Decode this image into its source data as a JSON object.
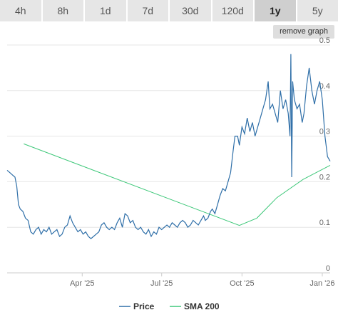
{
  "timeframe_tabs": [
    {
      "label": "4h",
      "active": false
    },
    {
      "label": "8h",
      "active": false
    },
    {
      "label": "1d",
      "active": false
    },
    {
      "label": "7d",
      "active": false
    },
    {
      "label": "30d",
      "active": false
    },
    {
      "label": "120d",
      "active": false
    },
    {
      "label": "1y",
      "active": true
    },
    {
      "label": "5y",
      "active": false
    }
  ],
  "remove_graph_label": "remove graph",
  "chart_data": {
    "type": "line",
    "x_ticks": [
      "Apr '25",
      "Jul '25",
      "Oct '25",
      "Jan '26"
    ],
    "x_tick_dates": [
      "2025-04-01",
      "2025-07-01",
      "2025-10-01",
      "2026-01-01"
    ],
    "xlim": [
      "2025-01-05",
      "2026-01-10"
    ],
    "y_ticks": [
      0,
      0.1,
      0.2,
      0.3,
      0.4,
      0.5
    ],
    "ylim": [
      0,
      0.5
    ],
    "grid": true,
    "y_axis_position": "right",
    "legend_position": "bottom",
    "series": [
      {
        "name": "Price",
        "color": "#2f6fa8",
        "points": [
          [
            "2025-01-05",
            0.225
          ],
          [
            "2025-01-08",
            0.22
          ],
          [
            "2025-01-11",
            0.215
          ],
          [
            "2025-01-14",
            0.21
          ],
          [
            "2025-01-16",
            0.19
          ],
          [
            "2025-01-18",
            0.15
          ],
          [
            "2025-01-20",
            0.14
          ],
          [
            "2025-01-23",
            0.135
          ],
          [
            "2025-01-26",
            0.12
          ],
          [
            "2025-01-29",
            0.115
          ],
          [
            "2025-02-01",
            0.09
          ],
          [
            "2025-02-04",
            0.085
          ],
          [
            "2025-02-07",
            0.095
          ],
          [
            "2025-02-10",
            0.1
          ],
          [
            "2025-02-13",
            0.085
          ],
          [
            "2025-02-16",
            0.095
          ],
          [
            "2025-02-19",
            0.09
          ],
          [
            "2025-02-22",
            0.1
          ],
          [
            "2025-02-25",
            0.085
          ],
          [
            "2025-02-28",
            0.09
          ],
          [
            "2025-03-03",
            0.095
          ],
          [
            "2025-03-06",
            0.08
          ],
          [
            "2025-03-09",
            0.085
          ],
          [
            "2025-03-12",
            0.1
          ],
          [
            "2025-03-15",
            0.105
          ],
          [
            "2025-03-18",
            0.125
          ],
          [
            "2025-03-21",
            0.11
          ],
          [
            "2025-03-24",
            0.1
          ],
          [
            "2025-03-27",
            0.09
          ],
          [
            "2025-03-30",
            0.095
          ],
          [
            "2025-04-02",
            0.085
          ],
          [
            "2025-04-05",
            0.09
          ],
          [
            "2025-04-08",
            0.08
          ],
          [
            "2025-04-11",
            0.075
          ],
          [
            "2025-04-14",
            0.08
          ],
          [
            "2025-04-17",
            0.085
          ],
          [
            "2025-04-20",
            0.09
          ],
          [
            "2025-04-23",
            0.105
          ],
          [
            "2025-04-26",
            0.11
          ],
          [
            "2025-04-29",
            0.1
          ],
          [
            "2025-05-02",
            0.095
          ],
          [
            "2025-05-05",
            0.1
          ],
          [
            "2025-05-08",
            0.095
          ],
          [
            "2025-05-11",
            0.11
          ],
          [
            "2025-05-14",
            0.12
          ],
          [
            "2025-05-17",
            0.1
          ],
          [
            "2025-05-20",
            0.13
          ],
          [
            "2025-05-23",
            0.125
          ],
          [
            "2025-05-26",
            0.11
          ],
          [
            "2025-05-29",
            0.115
          ],
          [
            "2025-06-01",
            0.1
          ],
          [
            "2025-06-04",
            0.095
          ],
          [
            "2025-06-07",
            0.1
          ],
          [
            "2025-06-10",
            0.09
          ],
          [
            "2025-06-13",
            0.085
          ],
          [
            "2025-06-16",
            0.095
          ],
          [
            "2025-06-19",
            0.08
          ],
          [
            "2025-06-22",
            0.09
          ],
          [
            "2025-06-25",
            0.085
          ],
          [
            "2025-06-28",
            0.1
          ],
          [
            "2025-07-01",
            0.095
          ],
          [
            "2025-07-04",
            0.1
          ],
          [
            "2025-07-07",
            0.105
          ],
          [
            "2025-07-10",
            0.1
          ],
          [
            "2025-07-13",
            0.11
          ],
          [
            "2025-07-16",
            0.105
          ],
          [
            "2025-07-19",
            0.1
          ],
          [
            "2025-07-22",
            0.11
          ],
          [
            "2025-07-25",
            0.115
          ],
          [
            "2025-07-28",
            0.11
          ],
          [
            "2025-07-31",
            0.1
          ],
          [
            "2025-08-03",
            0.105
          ],
          [
            "2025-08-06",
            0.115
          ],
          [
            "2025-08-09",
            0.11
          ],
          [
            "2025-08-12",
            0.105
          ],
          [
            "2025-08-15",
            0.115
          ],
          [
            "2025-08-18",
            0.125
          ],
          [
            "2025-08-20",
            0.115
          ],
          [
            "2025-08-23",
            0.12
          ],
          [
            "2025-08-26",
            0.135
          ],
          [
            "2025-08-28",
            0.14
          ],
          [
            "2025-08-31",
            0.13
          ],
          [
            "2025-09-03",
            0.15
          ],
          [
            "2025-09-06",
            0.17
          ],
          [
            "2025-09-09",
            0.185
          ],
          [
            "2025-09-12",
            0.18
          ],
          [
            "2025-09-15",
            0.2
          ],
          [
            "2025-09-18",
            0.22
          ],
          [
            "2025-09-21",
            0.27
          ],
          [
            "2025-09-23",
            0.3
          ],
          [
            "2025-09-26",
            0.3
          ],
          [
            "2025-09-28",
            0.28
          ],
          [
            "2025-10-01",
            0.32
          ],
          [
            "2025-10-04",
            0.305
          ],
          [
            "2025-10-07",
            0.34
          ],
          [
            "2025-10-10",
            0.31
          ],
          [
            "2025-10-13",
            0.33
          ],
          [
            "2025-10-16",
            0.3
          ],
          [
            "2025-10-19",
            0.32
          ],
          [
            "2025-10-22",
            0.34
          ],
          [
            "2025-10-25",
            0.36
          ],
          [
            "2025-10-28",
            0.38
          ],
          [
            "2025-10-31",
            0.42
          ],
          [
            "2025-11-02",
            0.36
          ],
          [
            "2025-11-05",
            0.37
          ],
          [
            "2025-11-08",
            0.35
          ],
          [
            "2025-11-11",
            0.33
          ],
          [
            "2025-11-14",
            0.4
          ],
          [
            "2025-11-17",
            0.36
          ],
          [
            "2025-11-20",
            0.38
          ],
          [
            "2025-11-23",
            0.35
          ],
          [
            "2025-11-25",
            0.3
          ],
          [
            "2025-11-26",
            0.48
          ],
          [
            "2025-11-27",
            0.21
          ],
          [
            "2025-11-28",
            0.42
          ],
          [
            "2025-11-30",
            0.38
          ],
          [
            "2025-12-03",
            0.36
          ],
          [
            "2025-12-06",
            0.37
          ],
          [
            "2025-12-09",
            0.33
          ],
          [
            "2025-12-11",
            0.35
          ],
          [
            "2025-12-14",
            0.41
          ],
          [
            "2025-12-17",
            0.45
          ],
          [
            "2025-12-20",
            0.4
          ],
          [
            "2025-12-23",
            0.37
          ],
          [
            "2025-12-26",
            0.4
          ],
          [
            "2025-12-29",
            0.42
          ],
          [
            "2026-01-01",
            0.38
          ],
          [
            "2026-01-04",
            0.3
          ],
          [
            "2026-01-07",
            0.255
          ],
          [
            "2026-01-10",
            0.245
          ]
        ]
      },
      {
        "name": "SMA 200",
        "color": "#3fc87a",
        "points": [
          [
            "2025-01-24",
            0.283
          ],
          [
            "2025-09-28",
            0.104
          ],
          [
            "2025-10-18",
            0.12
          ],
          [
            "2025-11-10",
            0.165
          ],
          [
            "2025-12-10",
            0.205
          ],
          [
            "2026-01-10",
            0.236
          ]
        ]
      }
    ]
  }
}
